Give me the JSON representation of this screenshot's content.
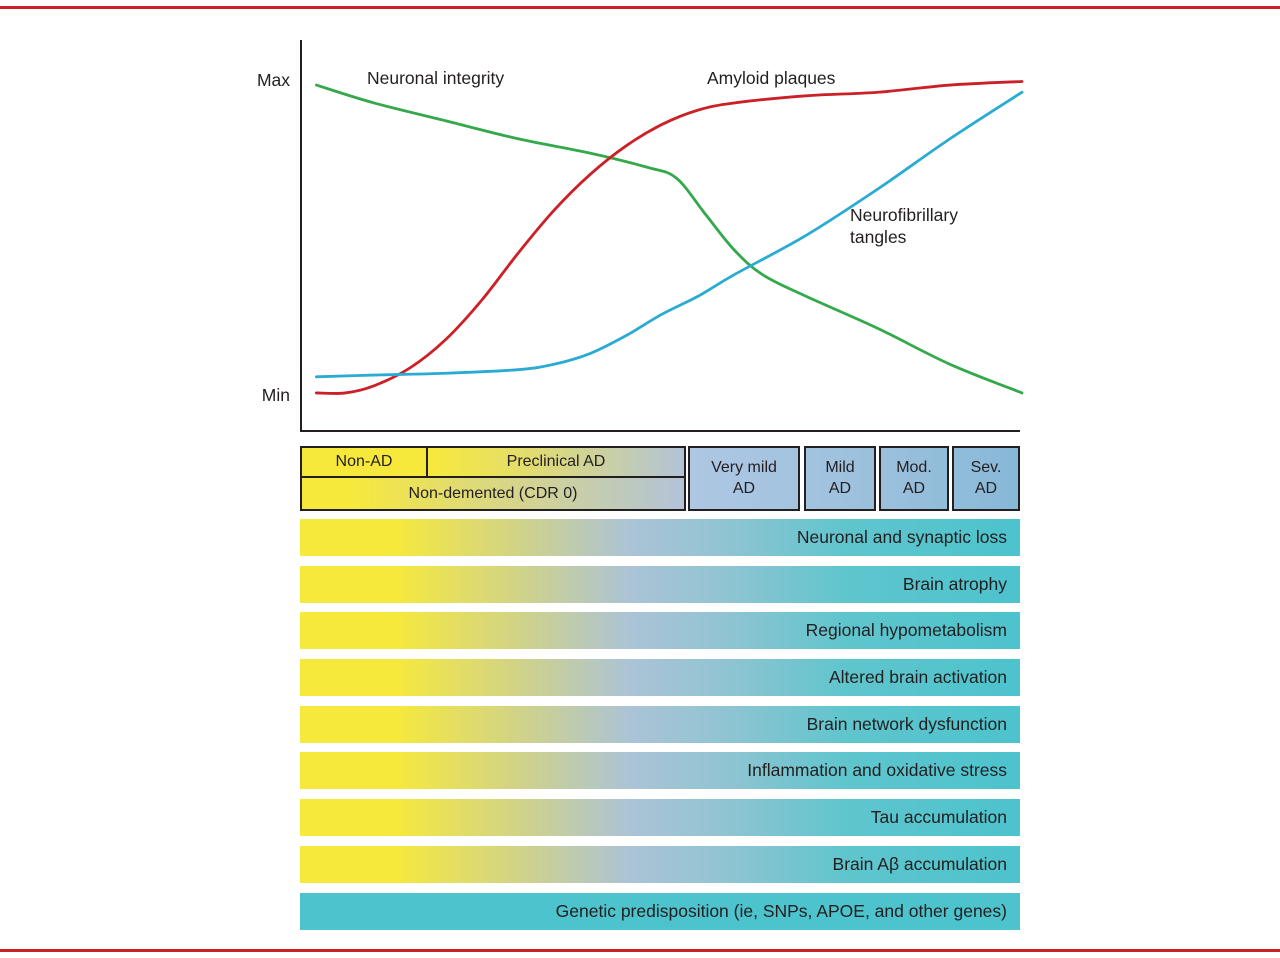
{
  "colors": {
    "frame-red": "#cb2127",
    "ink": "#231f20",
    "yellow": "#f7e93b",
    "teal": "#4cc3cd",
    "blend-blue": "#b2c3d8",
    "stage-blue": "#a6c3e0",
    "green-curve": "#33a94c",
    "red-curve": "#cb2026",
    "cyan-curve": "#29abd4"
  },
  "chart": {
    "y_max_label": "Max",
    "y_min_label": "Min",
    "labels": {
      "green": "Neuronal integrity",
      "red": "Amyloid plaques",
      "blue": "Neurofibrillary tangles"
    }
  },
  "chart_data": {
    "type": "line",
    "title": "",
    "xlabel": "",
    "ylabel": "",
    "x_range": [
      0,
      100
    ],
    "y_axis_tick_labels": [
      "Min",
      "Max"
    ],
    "ylim": [
      0,
      1
    ],
    "grid": false,
    "legend_position": "inline-annotations",
    "series": [
      {
        "name": "Neuronal integrity",
        "color": "#33a94c",
        "x": [
          2,
          10,
          20,
          30,
          40,
          48,
          52,
          56,
          60,
          64,
          70,
          80,
          90,
          100
        ],
        "y": [
          0.93,
          0.88,
          0.83,
          0.78,
          0.74,
          0.7,
          0.67,
          0.57,
          0.47,
          0.4,
          0.34,
          0.25,
          0.15,
          0.07
        ]
      },
      {
        "name": "Amyloid plaques",
        "color": "#cb2026",
        "x": [
          2,
          6,
          10,
          15,
          20,
          25,
          30,
          35,
          40,
          45,
          50,
          55,
          60,
          70,
          80,
          90,
          100
        ],
        "y": [
          0.07,
          0.07,
          0.09,
          0.14,
          0.22,
          0.33,
          0.46,
          0.58,
          0.68,
          0.76,
          0.82,
          0.86,
          0.88,
          0.9,
          0.91,
          0.93,
          0.94
        ]
      },
      {
        "name": "Neurofibrillary tangles",
        "color": "#29abd4",
        "x": [
          2,
          10,
          20,
          30,
          35,
          40,
          45,
          50,
          55,
          60,
          70,
          80,
          90,
          100
        ],
        "y": [
          0.115,
          0.12,
          0.125,
          0.135,
          0.15,
          0.18,
          0.23,
          0.29,
          0.34,
          0.4,
          0.51,
          0.64,
          0.78,
          0.91
        ]
      }
    ]
  },
  "stages": {
    "non_ad": "Non-AD",
    "preclinical": "Preclinical AD",
    "non_demented": "Non-demented (CDR 0)",
    "right": [
      {
        "label": "Very mild\nAD"
      },
      {
        "label": "Mild\nAD"
      },
      {
        "label": "Mod.\nAD"
      },
      {
        "label": "Sev.\nAD"
      }
    ]
  },
  "bars": [
    {
      "label": "Neuronal and synaptic loss"
    },
    {
      "label": "Brain atrophy"
    },
    {
      "label": "Regional hypometabolism"
    },
    {
      "label": "Altered brain activation"
    },
    {
      "label": "Brain network dysfunction"
    },
    {
      "label": "Inflammation and oxidative stress"
    },
    {
      "label": "Tau accumulation"
    },
    {
      "label": "Brain Aβ accumulation"
    },
    {
      "label": "Genetic predisposition (ie, SNPs, APOE, and other genes)",
      "solid": true
    }
  ]
}
